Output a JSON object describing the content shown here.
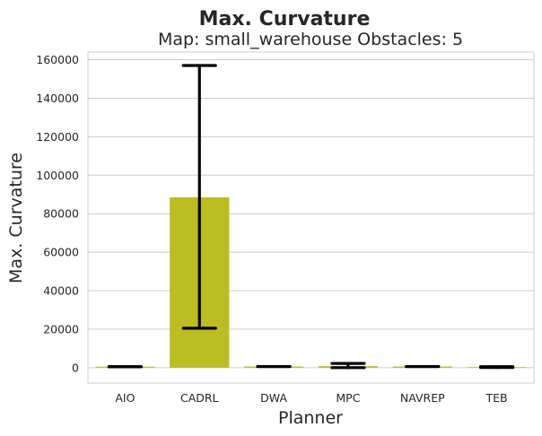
{
  "chart_data": {
    "type": "bar",
    "title": "Max. Curvature",
    "subtitle": "Map: small_warehouse Obstacles: 5",
    "xlabel": "Planner",
    "ylabel": "Max. Curvature",
    "categories": [
      "AIO",
      "CADRL",
      "DWA",
      "MPC",
      "NAVREP",
      "TEB"
    ],
    "values": [
      500,
      88500,
      600,
      800,
      600,
      300
    ],
    "error_low": [
      500,
      20500,
      600,
      0,
      600,
      100
    ],
    "error_high": [
      500,
      157000,
      600,
      2200,
      600,
      500
    ],
    "bar_color": "#bcbd22",
    "errorbar_color": "#000000",
    "ylim": [
      -8000,
      164000
    ],
    "yticks": [
      0,
      20000,
      40000,
      60000,
      80000,
      100000,
      120000,
      140000,
      160000
    ],
    "ytick_labels": [
      "0",
      "20000",
      "40000",
      "60000",
      "80000",
      "100000",
      "120000",
      "140000",
      "160000"
    ],
    "grid": true
  }
}
